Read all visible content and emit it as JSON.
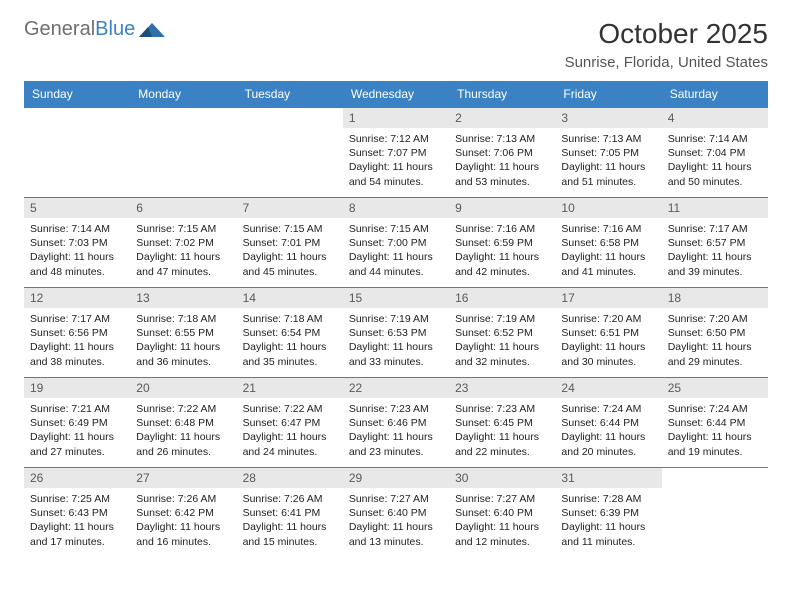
{
  "logo": {
    "word1": "General",
    "word2": "Blue",
    "mark_color": "#2f6ea8",
    "text_gray": "#6f6f6f"
  },
  "title": "October 2025",
  "location": "Sunrise, Florida, United States",
  "colors": {
    "header_bg": "#3b82c4",
    "header_text": "#ffffff",
    "row_border": "#3b82c4",
    "daynum_bg": "#e8e8e8",
    "daynum_text": "#5a5a5a",
    "body_text": "#222222",
    "page_bg": "#ffffff"
  },
  "weekdays": [
    "Sunday",
    "Monday",
    "Tuesday",
    "Wednesday",
    "Thursday",
    "Friday",
    "Saturday"
  ],
  "weeks": [
    [
      {
        "empty": true
      },
      {
        "empty": true
      },
      {
        "empty": true
      },
      {
        "n": "1",
        "sr": "Sunrise: 7:12 AM",
        "ss": "Sunset: 7:07 PM",
        "d1": "Daylight: 11 hours",
        "d2": "and 54 minutes."
      },
      {
        "n": "2",
        "sr": "Sunrise: 7:13 AM",
        "ss": "Sunset: 7:06 PM",
        "d1": "Daylight: 11 hours",
        "d2": "and 53 minutes."
      },
      {
        "n": "3",
        "sr": "Sunrise: 7:13 AM",
        "ss": "Sunset: 7:05 PM",
        "d1": "Daylight: 11 hours",
        "d2": "and 51 minutes."
      },
      {
        "n": "4",
        "sr": "Sunrise: 7:14 AM",
        "ss": "Sunset: 7:04 PM",
        "d1": "Daylight: 11 hours",
        "d2": "and 50 minutes."
      }
    ],
    [
      {
        "n": "5",
        "sr": "Sunrise: 7:14 AM",
        "ss": "Sunset: 7:03 PM",
        "d1": "Daylight: 11 hours",
        "d2": "and 48 minutes."
      },
      {
        "n": "6",
        "sr": "Sunrise: 7:15 AM",
        "ss": "Sunset: 7:02 PM",
        "d1": "Daylight: 11 hours",
        "d2": "and 47 minutes."
      },
      {
        "n": "7",
        "sr": "Sunrise: 7:15 AM",
        "ss": "Sunset: 7:01 PM",
        "d1": "Daylight: 11 hours",
        "d2": "and 45 minutes."
      },
      {
        "n": "8",
        "sr": "Sunrise: 7:15 AM",
        "ss": "Sunset: 7:00 PM",
        "d1": "Daylight: 11 hours",
        "d2": "and 44 minutes."
      },
      {
        "n": "9",
        "sr": "Sunrise: 7:16 AM",
        "ss": "Sunset: 6:59 PM",
        "d1": "Daylight: 11 hours",
        "d2": "and 42 minutes."
      },
      {
        "n": "10",
        "sr": "Sunrise: 7:16 AM",
        "ss": "Sunset: 6:58 PM",
        "d1": "Daylight: 11 hours",
        "d2": "and 41 minutes."
      },
      {
        "n": "11",
        "sr": "Sunrise: 7:17 AM",
        "ss": "Sunset: 6:57 PM",
        "d1": "Daylight: 11 hours",
        "d2": "and 39 minutes."
      }
    ],
    [
      {
        "n": "12",
        "sr": "Sunrise: 7:17 AM",
        "ss": "Sunset: 6:56 PM",
        "d1": "Daylight: 11 hours",
        "d2": "and 38 minutes."
      },
      {
        "n": "13",
        "sr": "Sunrise: 7:18 AM",
        "ss": "Sunset: 6:55 PM",
        "d1": "Daylight: 11 hours",
        "d2": "and 36 minutes."
      },
      {
        "n": "14",
        "sr": "Sunrise: 7:18 AM",
        "ss": "Sunset: 6:54 PM",
        "d1": "Daylight: 11 hours",
        "d2": "and 35 minutes."
      },
      {
        "n": "15",
        "sr": "Sunrise: 7:19 AM",
        "ss": "Sunset: 6:53 PM",
        "d1": "Daylight: 11 hours",
        "d2": "and 33 minutes."
      },
      {
        "n": "16",
        "sr": "Sunrise: 7:19 AM",
        "ss": "Sunset: 6:52 PM",
        "d1": "Daylight: 11 hours",
        "d2": "and 32 minutes."
      },
      {
        "n": "17",
        "sr": "Sunrise: 7:20 AM",
        "ss": "Sunset: 6:51 PM",
        "d1": "Daylight: 11 hours",
        "d2": "and 30 minutes."
      },
      {
        "n": "18",
        "sr": "Sunrise: 7:20 AM",
        "ss": "Sunset: 6:50 PM",
        "d1": "Daylight: 11 hours",
        "d2": "and 29 minutes."
      }
    ],
    [
      {
        "n": "19",
        "sr": "Sunrise: 7:21 AM",
        "ss": "Sunset: 6:49 PM",
        "d1": "Daylight: 11 hours",
        "d2": "and 27 minutes."
      },
      {
        "n": "20",
        "sr": "Sunrise: 7:22 AM",
        "ss": "Sunset: 6:48 PM",
        "d1": "Daylight: 11 hours",
        "d2": "and 26 minutes."
      },
      {
        "n": "21",
        "sr": "Sunrise: 7:22 AM",
        "ss": "Sunset: 6:47 PM",
        "d1": "Daylight: 11 hours",
        "d2": "and 24 minutes."
      },
      {
        "n": "22",
        "sr": "Sunrise: 7:23 AM",
        "ss": "Sunset: 6:46 PM",
        "d1": "Daylight: 11 hours",
        "d2": "and 23 minutes."
      },
      {
        "n": "23",
        "sr": "Sunrise: 7:23 AM",
        "ss": "Sunset: 6:45 PM",
        "d1": "Daylight: 11 hours",
        "d2": "and 22 minutes."
      },
      {
        "n": "24",
        "sr": "Sunrise: 7:24 AM",
        "ss": "Sunset: 6:44 PM",
        "d1": "Daylight: 11 hours",
        "d2": "and 20 minutes."
      },
      {
        "n": "25",
        "sr": "Sunrise: 7:24 AM",
        "ss": "Sunset: 6:44 PM",
        "d1": "Daylight: 11 hours",
        "d2": "and 19 minutes."
      }
    ],
    [
      {
        "n": "26",
        "sr": "Sunrise: 7:25 AM",
        "ss": "Sunset: 6:43 PM",
        "d1": "Daylight: 11 hours",
        "d2": "and 17 minutes."
      },
      {
        "n": "27",
        "sr": "Sunrise: 7:26 AM",
        "ss": "Sunset: 6:42 PM",
        "d1": "Daylight: 11 hours",
        "d2": "and 16 minutes."
      },
      {
        "n": "28",
        "sr": "Sunrise: 7:26 AM",
        "ss": "Sunset: 6:41 PM",
        "d1": "Daylight: 11 hours",
        "d2": "and 15 minutes."
      },
      {
        "n": "29",
        "sr": "Sunrise: 7:27 AM",
        "ss": "Sunset: 6:40 PM",
        "d1": "Daylight: 11 hours",
        "d2": "and 13 minutes."
      },
      {
        "n": "30",
        "sr": "Sunrise: 7:27 AM",
        "ss": "Sunset: 6:40 PM",
        "d1": "Daylight: 11 hours",
        "d2": "and 12 minutes."
      },
      {
        "n": "31",
        "sr": "Sunrise: 7:28 AM",
        "ss": "Sunset: 6:39 PM",
        "d1": "Daylight: 11 hours",
        "d2": "and 11 minutes."
      },
      {
        "empty": true
      }
    ]
  ]
}
